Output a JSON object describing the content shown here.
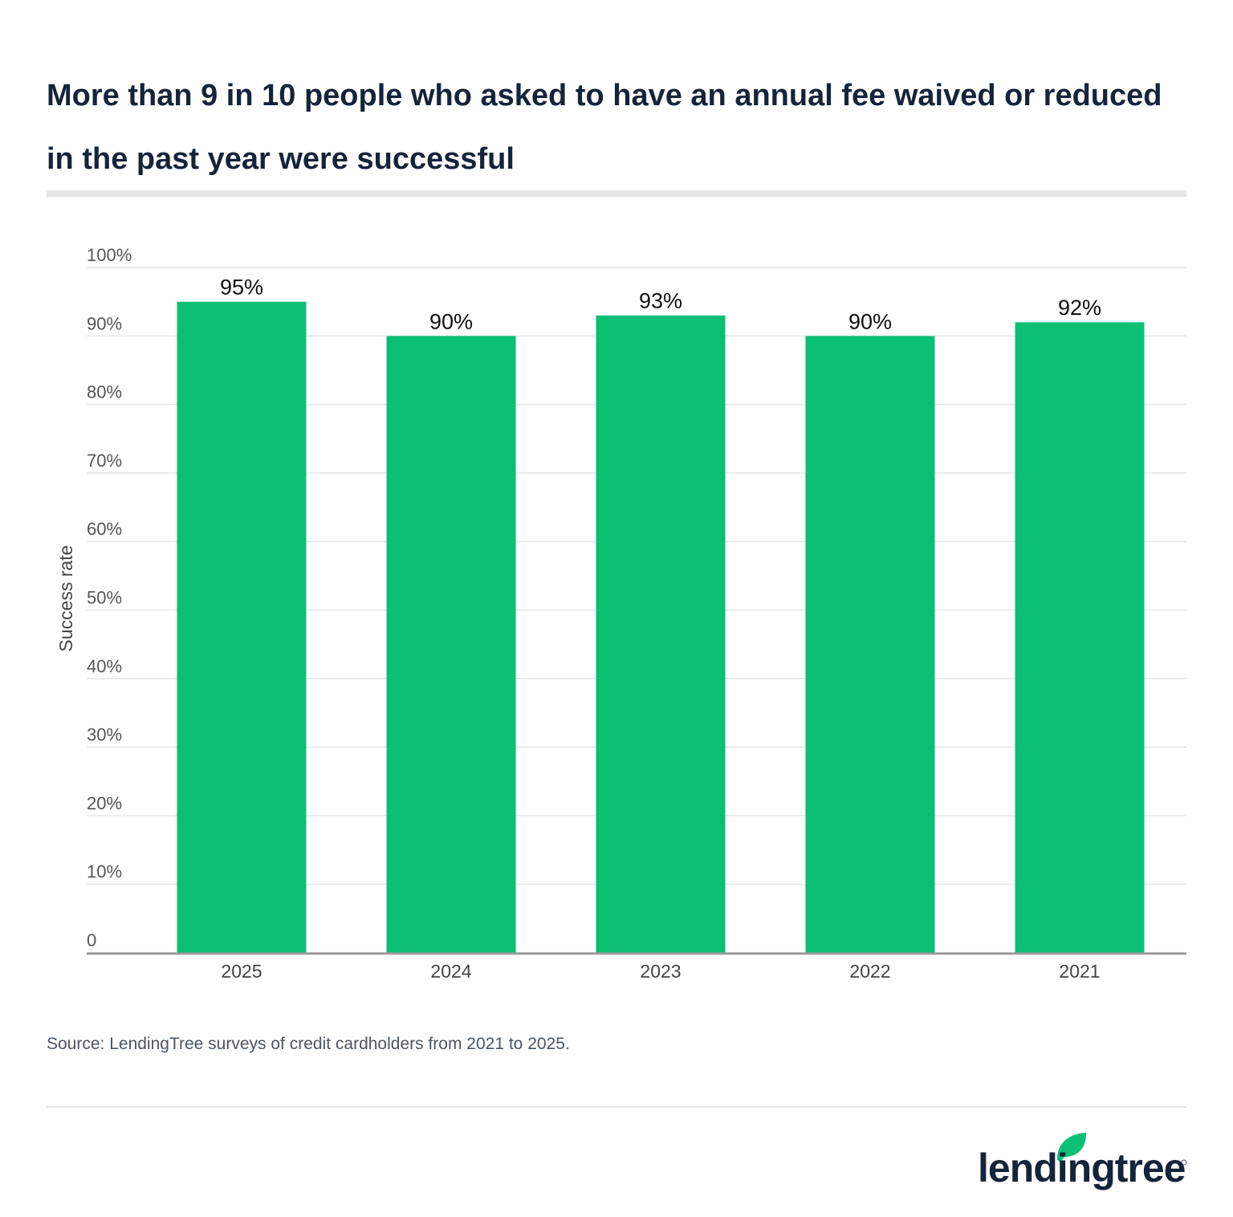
{
  "title": "More than 9 in 10 people who asked to have an annual fee waived or reduced in the past year were successful",
  "source": "Source: LendingTree surveys of credit cardholders from 2021 to 2025.",
  "logo": {
    "text": "lendingtree",
    "brand_color": "#0bbf74",
    "text_color": "#16243a"
  },
  "chart_data": {
    "type": "bar",
    "title": "More than 9 in 10 people who asked to have an annual fee waived or reduced in the past year were successful",
    "categories": [
      "2025",
      "2024",
      "2023",
      "2022",
      "2021"
    ],
    "values": [
      95,
      90,
      93,
      90,
      92
    ],
    "data_labels": [
      "95%",
      "90%",
      "93%",
      "90%",
      "92%"
    ],
    "xlabel": "",
    "ylabel": "Success rate",
    "ylim": [
      0,
      100
    ],
    "yticks": [
      0,
      10,
      20,
      30,
      40,
      50,
      60,
      70,
      80,
      90,
      100
    ],
    "ytick_labels": [
      "0",
      "10%",
      "20%",
      "30%",
      "40%",
      "50%",
      "60%",
      "70%",
      "80%",
      "90%",
      "100%"
    ],
    "grid": true,
    "bar_color": "#0bbf74"
  }
}
